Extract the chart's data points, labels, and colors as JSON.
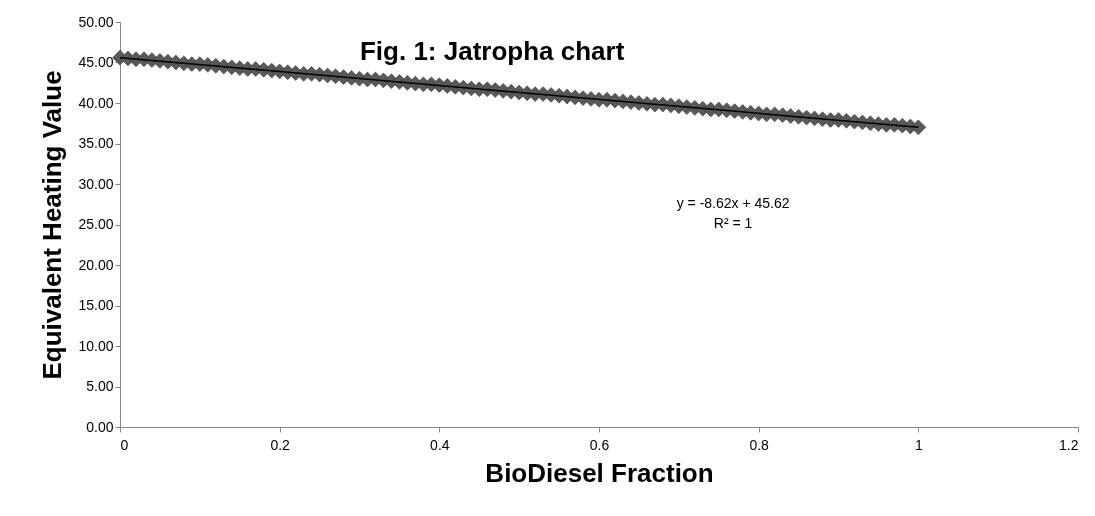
{
  "chart_data": {
    "type": "scatter",
    "title": "Fig. 1: Jatropha chart",
    "xlabel": "BioDiesel  Fraction",
    "ylabel": "Equivalent Heating Value",
    "annotations": [
      "y = -8.62x + 45.62",
      "R² = 1"
    ],
    "xlim": [
      0,
      1.2
    ],
    "xticks": [
      0,
      0.2,
      0.4,
      0.6,
      0.8,
      1,
      1.2
    ],
    "ylim": [
      0,
      50
    ],
    "yticks": [
      {
        "value": 0,
        "label": "0.00"
      },
      {
        "value": 5,
        "label": "5.00"
      },
      {
        "value": 10,
        "label": "10.00"
      },
      {
        "value": 15,
        "label": "15.00"
      },
      {
        "value": 20,
        "label": "20.00"
      },
      {
        "value": 25,
        "label": "25.00"
      },
      {
        "value": 30,
        "label": "30.00"
      },
      {
        "value": 35,
        "label": "35.00"
      },
      {
        "value": 40,
        "label": "40.00"
      },
      {
        "value": 45,
        "label": "45.00"
      },
      {
        "value": 50,
        "label": "50.00"
      }
    ],
    "grid": false,
    "series": [
      {
        "color": "#595959",
        "marker": "diamond",
        "x": [
          0,
          0.01,
          0.02,
          0.03,
          0.04,
          0.05,
          0.06,
          0.07,
          0.08,
          0.09,
          0.1,
          0.11,
          0.12,
          0.13,
          0.14,
          0.15,
          0.16,
          0.17,
          0.18,
          0.19,
          0.2,
          0.21,
          0.22,
          0.23,
          0.24,
          0.25,
          0.26,
          0.27,
          0.28,
          0.29,
          0.3,
          0.31,
          0.32,
          0.33,
          0.34,
          0.35,
          0.36,
          0.37,
          0.38,
          0.39,
          0.4,
          0.41,
          0.42,
          0.43,
          0.44,
          0.45,
          0.46,
          0.47,
          0.48,
          0.49,
          0.5,
          0.51,
          0.52,
          0.53,
          0.54,
          0.55,
          0.56,
          0.57,
          0.58,
          0.59,
          0.6,
          0.61,
          0.62,
          0.63,
          0.64,
          0.65,
          0.66,
          0.67,
          0.68,
          0.69,
          0.7,
          0.71,
          0.72,
          0.73,
          0.74,
          0.75,
          0.76,
          0.77,
          0.78,
          0.79,
          0.8,
          0.81,
          0.82,
          0.83,
          0.84,
          0.85,
          0.86,
          0.87,
          0.88,
          0.89,
          0.9,
          0.91,
          0.92,
          0.93,
          0.94,
          0.95,
          0.96,
          0.97,
          0.98,
          0.99,
          1
        ],
        "values": [
          45.6,
          45.5,
          45.4,
          45.4,
          45.3,
          45.2,
          45.1,
          45.0,
          44.9,
          44.8,
          44.8,
          44.7,
          44.6,
          44.5,
          44.4,
          44.3,
          44.2,
          44.2,
          44.1,
          44.0,
          43.9,
          43.8,
          43.7,
          43.6,
          43.6,
          43.5,
          43.4,
          43.3,
          43.2,
          43.1,
          43.0,
          42.9,
          42.9,
          42.8,
          42.7,
          42.6,
          42.5,
          42.4,
          42.3,
          42.3,
          42.2,
          42.1,
          42.0,
          41.9,
          41.8,
          41.7,
          41.7,
          41.6,
          41.5,
          41.4,
          41.3,
          41.2,
          41.1,
          41.1,
          41.0,
          40.9,
          40.8,
          40.7,
          40.6,
          40.5,
          40.4,
          40.4,
          40.3,
          40.2,
          40.1,
          40.0,
          39.9,
          39.8,
          39.8,
          39.7,
          39.6,
          39.5,
          39.4,
          39.3,
          39.2,
          39.2,
          39.1,
          39.0,
          38.9,
          38.8,
          38.7,
          38.6,
          38.6,
          38.5,
          38.4,
          38.3,
          38.2,
          38.1,
          38.0,
          37.9,
          37.9,
          37.8,
          37.7,
          37.6,
          37.5,
          37.4,
          37.3,
          37.3,
          37.2,
          37.1,
          37.0
        ]
      },
      {
        "type": "line",
        "color": "#000000",
        "line_style": "solid",
        "marker": "none",
        "x": [
          0,
          1
        ],
        "values": [
          45.6,
          37.0
        ]
      }
    ]
  }
}
